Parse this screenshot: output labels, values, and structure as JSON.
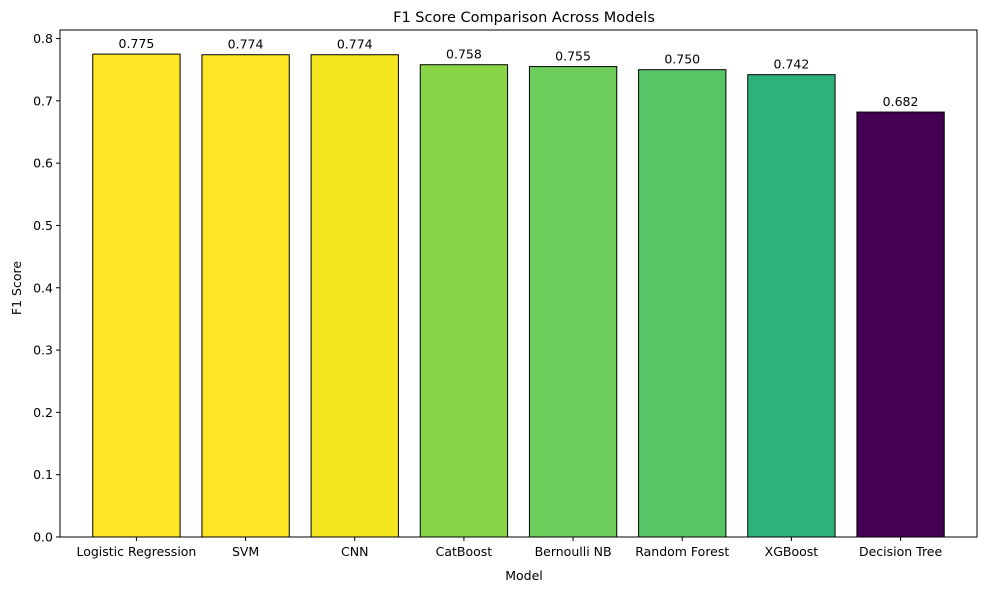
{
  "chart_data": {
    "type": "bar",
    "title": "F1 Score Comparison Across Models",
    "xlabel": "Model",
    "ylabel": "F1 Score",
    "categories": [
      "Logistic Regression",
      "SVM",
      "CNN",
      "CatBoost",
      "Bernoulli NB",
      "Random Forest",
      "XGBoost",
      "Decision Tree"
    ],
    "values": [
      0.775,
      0.774,
      0.774,
      0.758,
      0.755,
      0.75,
      0.742,
      0.682
    ],
    "value_labels": [
      "0.775",
      "0.774",
      "0.774",
      "0.758",
      "0.755",
      "0.750",
      "0.742",
      "0.682"
    ],
    "bar_colors": [
      "#fde725",
      "#fde725",
      "#f4e61e",
      "#89d548",
      "#6ccd5a",
      "#56c667",
      "#2db27d",
      "#440154"
    ],
    "edge_color": "#000000",
    "ylim": [
      0,
      0.8137
    ],
    "yticks": [
      0.0,
      0.1,
      0.2,
      0.3,
      0.4,
      0.5,
      0.6,
      0.7,
      0.8
    ],
    "ytick_labels": [
      "0.0",
      "0.1",
      "0.2",
      "0.3",
      "0.4",
      "0.5",
      "0.6",
      "0.7",
      "0.8"
    ],
    "grid": false,
    "legend": false
  }
}
